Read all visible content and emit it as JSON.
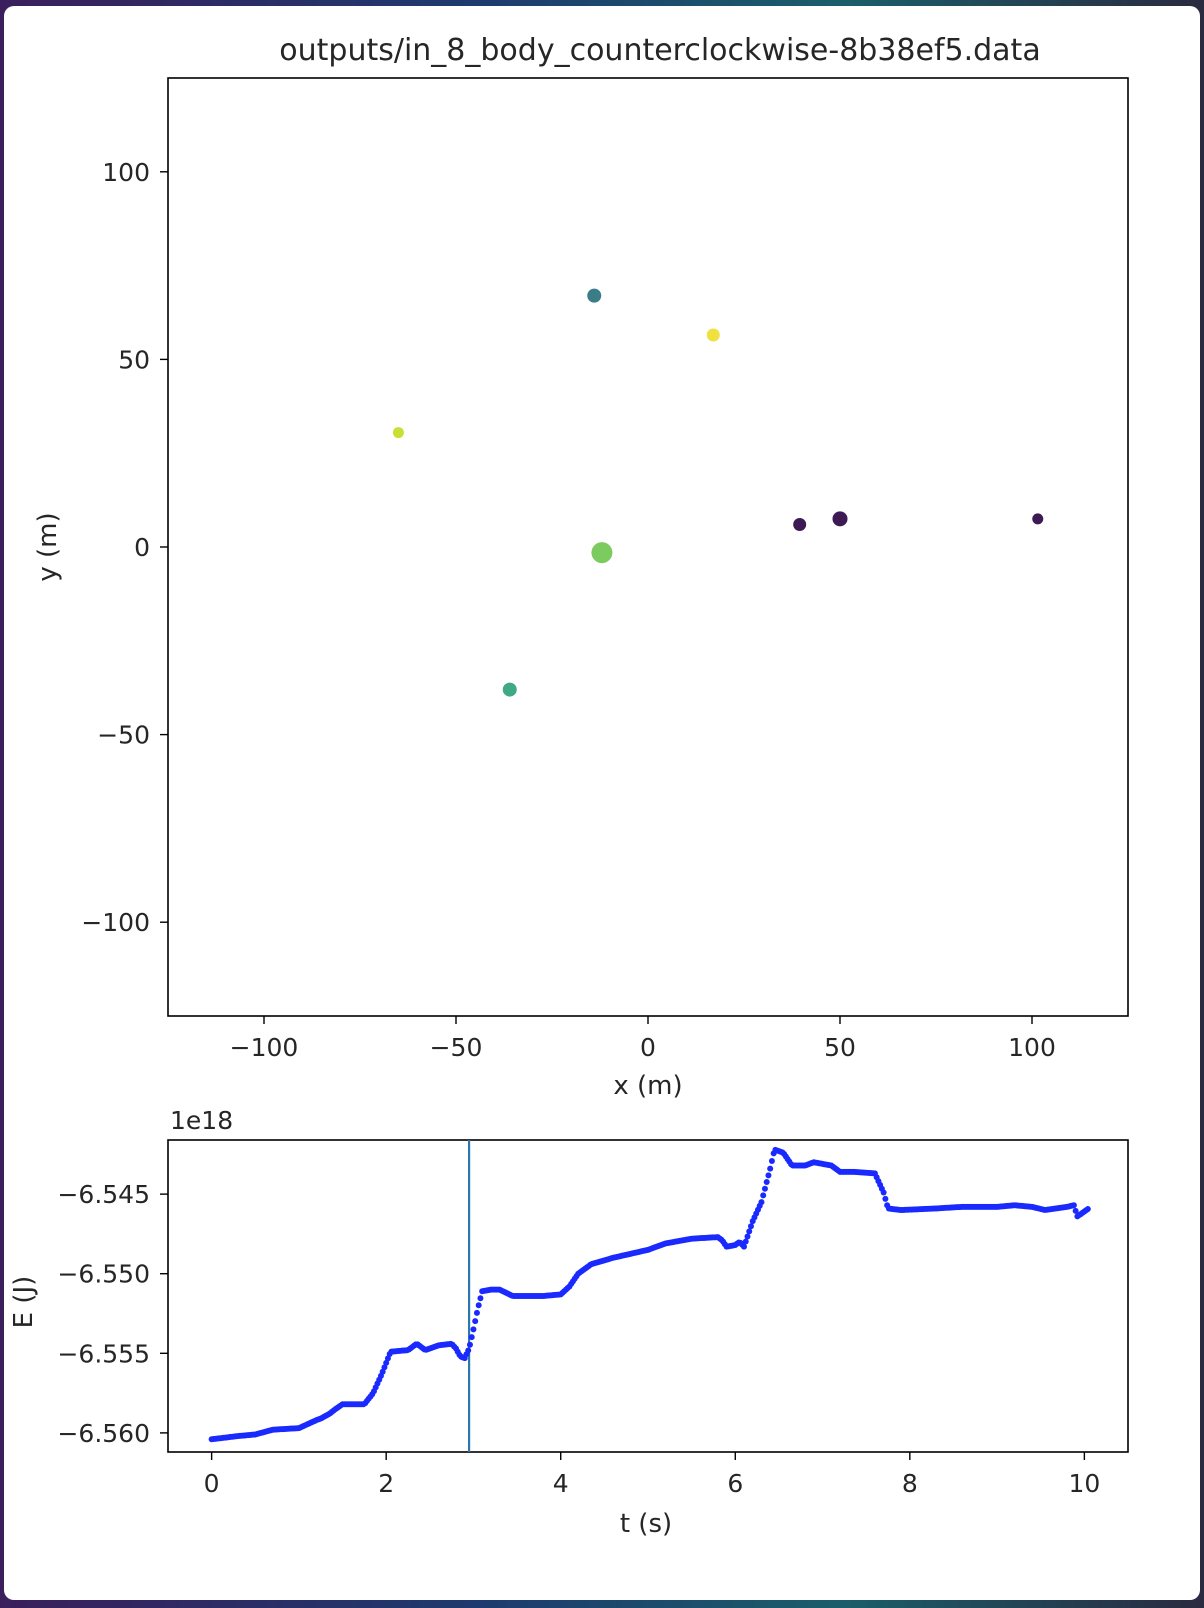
{
  "chart_data": [
    {
      "type": "scatter",
      "title": "outputs/in_8_body_counterclockwise-8b38ef5.data",
      "xlabel": "x (m)",
      "ylabel": "y (m)",
      "xlim": [
        -125,
        125
      ],
      "ylim": [
        -125,
        125
      ],
      "xticks": [
        -100,
        -50,
        0,
        50,
        100
      ],
      "yticks": [
        100,
        50,
        0,
        -50,
        -100
      ],
      "xtick_labels": [
        "−100",
        "−50",
        "0",
        "50",
        "100"
      ],
      "ytick_labels": [
        "100",
        "50",
        "0",
        "−50",
        "−100"
      ],
      "grid": false,
      "points": [
        {
          "x": -14,
          "y": 67,
          "size": 7,
          "color": "#3b7d87"
        },
        {
          "x": 17,
          "y": 56.5,
          "size": 6.5,
          "color": "#f0e040"
        },
        {
          "x": -65,
          "y": 30.5,
          "size": 5.5,
          "color": "#c9df35"
        },
        {
          "x": 39.5,
          "y": 6,
          "size": 6.5,
          "color": "#3d1a54"
        },
        {
          "x": 50,
          "y": 7.5,
          "size": 7.5,
          "color": "#3d1a54"
        },
        {
          "x": 101.5,
          "y": 7.5,
          "size": 5.5,
          "color": "#3d1a54"
        },
        {
          "x": -12,
          "y": -1.5,
          "size": 10.5,
          "color": "#7ccb5e"
        },
        {
          "x": -36,
          "y": -38,
          "size": 7,
          "color": "#3fa886"
        }
      ]
    },
    {
      "type": "scatter",
      "xlabel": "t (s)",
      "ylabel": "E (J)",
      "offset_label": "1e18",
      "xlim": [
        -0.5,
        10.5
      ],
      "ylim": [
        -6.5612,
        -6.5416
      ],
      "xticks": [
        0,
        2,
        4,
        6,
        8,
        10
      ],
      "yticks": [
        -6.545,
        -6.55,
        -6.555,
        -6.56
      ],
      "xtick_labels": [
        "0",
        "2",
        "4",
        "6",
        "8",
        "10"
      ],
      "ytick_labels": [
        "−6.545",
        "−6.550",
        "−6.555",
        "−6.560"
      ],
      "marker_color": "#1a2aff",
      "vline": {
        "x": 2.95,
        "color": "#2a78b0"
      },
      "grid": false,
      "curve": [
        [
          0,
          -6.5604
        ],
        [
          0.3,
          -6.5602
        ],
        [
          0.5,
          -6.5601
        ],
        [
          0.7,
          -6.5598
        ],
        [
          1.0,
          -6.5597
        ],
        [
          1.2,
          -6.5592
        ],
        [
          1.25,
          -6.5591
        ],
        [
          1.35,
          -6.5588
        ],
        [
          1.42,
          -6.5585
        ],
        [
          1.5,
          -6.5582
        ],
        [
          1.65,
          -6.5582
        ],
        [
          1.75,
          -6.5582
        ],
        [
          1.85,
          -6.5575
        ],
        [
          1.95,
          -6.5563
        ],
        [
          2.05,
          -6.5549
        ],
        [
          2.25,
          -6.5548
        ],
        [
          2.35,
          -6.5544
        ],
        [
          2.45,
          -6.5548
        ],
        [
          2.6,
          -6.5545
        ],
        [
          2.75,
          -6.5544
        ],
        [
          2.8,
          -6.5547
        ],
        [
          2.85,
          -6.5552
        ],
        [
          2.9,
          -6.5553
        ],
        [
          2.95,
          -6.5547
        ],
        [
          3.0,
          -6.5535
        ],
        [
          3.05,
          -6.5522
        ],
        [
          3.1,
          -6.5511
        ],
        [
          3.2,
          -6.551
        ],
        [
          3.3,
          -6.551
        ],
        [
          3.45,
          -6.5514
        ],
        [
          3.6,
          -6.5514
        ],
        [
          3.8,
          -6.5514
        ],
        [
          4.0,
          -6.5513
        ],
        [
          4.1,
          -6.5508
        ],
        [
          4.2,
          -6.55
        ],
        [
          4.35,
          -6.5494
        ],
        [
          4.6,
          -6.549
        ],
        [
          5.0,
          -6.5485
        ],
        [
          5.2,
          -6.5481
        ],
        [
          5.5,
          -6.5478
        ],
        [
          5.8,
          -6.5477
        ],
        [
          5.85,
          -6.5479
        ],
        [
          5.9,
          -6.5483
        ],
        [
          6.0,
          -6.5482
        ],
        [
          6.05,
          -6.548
        ],
        [
          6.1,
          -6.5483
        ],
        [
          6.2,
          -6.5467
        ],
        [
          6.3,
          -6.5455
        ],
        [
          6.4,
          -6.5434
        ],
        [
          6.45,
          -6.5422
        ],
        [
          6.55,
          -6.5424
        ],
        [
          6.65,
          -6.5432
        ],
        [
          6.8,
          -6.5432
        ],
        [
          6.9,
          -6.543
        ],
        [
          7.1,
          -6.5432
        ],
        [
          7.2,
          -6.5436
        ],
        [
          7.35,
          -6.5436
        ],
        [
          7.6,
          -6.5437
        ],
        [
          7.7,
          -6.5449
        ],
        [
          7.75,
          -6.5459
        ],
        [
          7.9,
          -6.546
        ],
        [
          8.3,
          -6.5459
        ],
        [
          8.6,
          -6.5458
        ],
        [
          9.0,
          -6.5458
        ],
        [
          9.2,
          -6.5457
        ],
        [
          9.4,
          -6.5458
        ],
        [
          9.55,
          -6.546
        ],
        [
          9.8,
          -6.5458
        ],
        [
          9.88,
          -6.5457
        ],
        [
          9.92,
          -6.5464
        ],
        [
          10.05,
          -6.5459
        ]
      ]
    }
  ]
}
